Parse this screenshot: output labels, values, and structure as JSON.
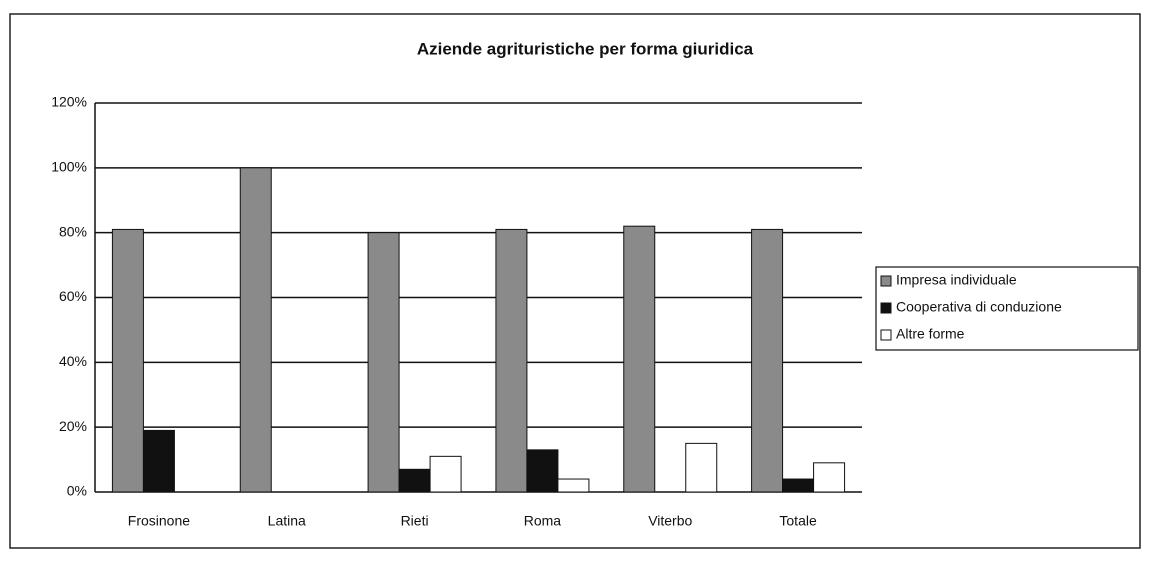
{
  "chart_data": {
    "type": "bar",
    "title": "Aziende agrituristiche per forma giuridica",
    "categories": [
      "Frosinone",
      "Latina",
      "Rieti",
      "Roma",
      "Viterbo",
      "Totale"
    ],
    "series": [
      {
        "name": "Impresa individuale",
        "color": "#8a8a8a",
        "values": [
          81,
          100,
          80,
          81,
          82,
          81
        ]
      },
      {
        "name": "Cooperativa di conduzione",
        "color": "#111111",
        "values": [
          19,
          0,
          7,
          13,
          0,
          4
        ]
      },
      {
        "name": "Altre forme",
        "color": "#ffffff",
        "values": [
          0,
          0,
          11,
          4,
          15,
          9
        ]
      }
    ],
    "ylim": [
      0,
      120
    ],
    "yticks": [
      {
        "value": 0,
        "label": "0%"
      },
      {
        "value": 20,
        "label": "20%"
      },
      {
        "value": 40,
        "label": "40%"
      },
      {
        "value": 60,
        "label": "60%"
      },
      {
        "value": 80,
        "label": "80%"
      },
      {
        "value": 100,
        "label": "100%"
      },
      {
        "value": 120,
        "label": "120%"
      }
    ],
    "grid": true,
    "legend": "right"
  }
}
